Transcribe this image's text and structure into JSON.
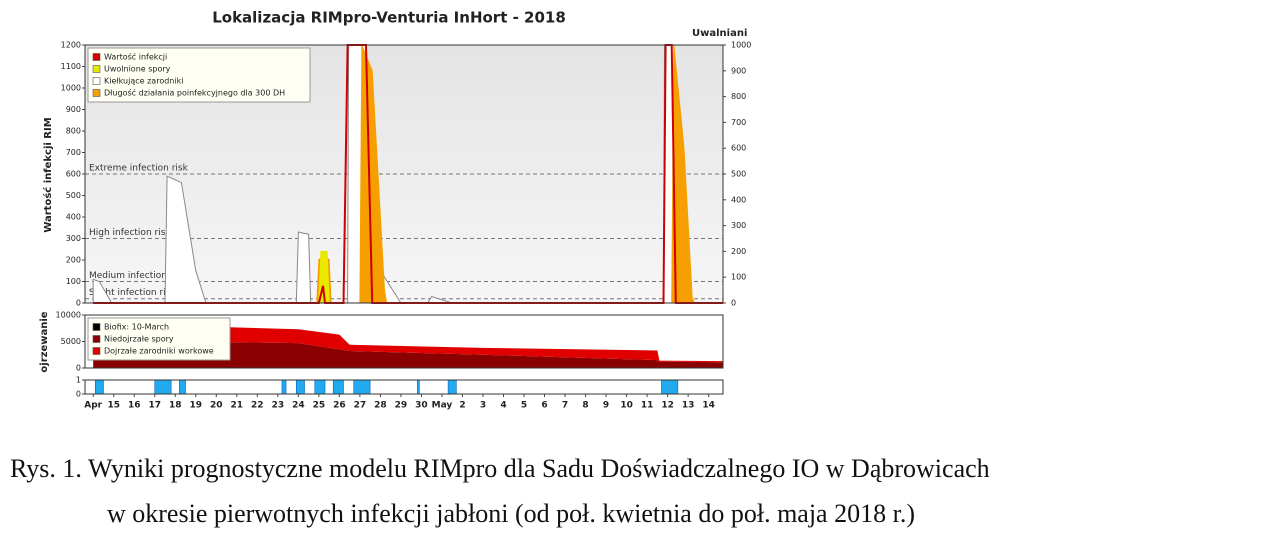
{
  "caption": [
    "Rys. 1. Wyniki prognostyczne modelu RIMpro dla Sadu Doświadczalnego IO w Dąbrowicach",
    "w okresie pierwotnych infekcji jabłoni (od poł. kwietnia do poł. maja 2018 r.)"
  ],
  "chart_data": [
    {
      "type": "line",
      "title": "Lokalizacja RIMpro-Venturia  InHort - 2018",
      "ylabel": "Wartość infekcji RIM",
      "y2label": "Uwalniani",
      "xlim": [
        13.6,
        44.7
      ],
      "ylim": [
        0,
        1200
      ],
      "yticks": [
        0,
        100,
        200,
        300,
        400,
        500,
        600,
        700,
        800,
        900,
        1000,
        1100,
        1200
      ],
      "y2lim": [
        0,
        1000
      ],
      "y2ticks": [
        0,
        100,
        200,
        300,
        400,
        500,
        600,
        700,
        800,
        900,
        1000
      ],
      "thresholds": [
        {
          "label": "Extreme infection risk",
          "value": 600
        },
        {
          "label": "High infection risk",
          "value": 300
        },
        {
          "label": "Medium infection risk",
          "value": 100
        },
        {
          "label": "Slight infection risk",
          "value": 20
        }
      ],
      "series": [
        {
          "name": "Wartość infekcji",
          "color": "#d00000",
          "x": [
            14,
            25.0,
            25.2,
            25.3,
            26.2,
            26.4,
            26.5,
            27.3,
            27.6,
            41.8,
            41.9,
            42.2,
            42.4,
            44.7
          ],
          "values": [
            0,
            0,
            80,
            0,
            0,
            1200,
            1200,
            1200,
            0,
            0,
            1200,
            1200,
            0,
            0
          ]
        },
        {
          "name": "Uwolnione spory",
          "color": "#e8e800",
          "fill": "#e8e800",
          "axis": "y2",
          "x": [
            25.0,
            25.1,
            25.4,
            25.5
          ],
          "values": [
            0,
            200,
            200,
            0
          ]
        },
        {
          "name": "Kiełkujące zarodniki",
          "color": "#888888",
          "fill": "#ffffff",
          "x": [
            14,
            14.3,
            14.9,
            17.5,
            17.6,
            18.3,
            19,
            19.5,
            23.9,
            24.0,
            24.5,
            24.6,
            26.4,
            26.45,
            27.3,
            27.6,
            28,
            29,
            30.3,
            30.5,
            31.5,
            41.8,
            41.85,
            42.3,
            42.7,
            43
          ],
          "values": [
            110,
            100,
            0,
            0,
            590,
            560,
            150,
            0,
            0,
            330,
            320,
            0,
            0,
            1200,
            1200,
            600,
            150,
            0,
            0,
            30,
            0,
            0,
            1200,
            1200,
            200,
            50
          ]
        },
        {
          "name": "Długość działania poinfekcyjnego dla 300 DH",
          "color": "#f5a000",
          "fill": "#f5a000",
          "axis": "y2",
          "x": [
            24.9,
            25.0,
            25.5,
            25.6,
            27.0,
            27.1,
            27.6,
            28.2,
            28.3,
            42.2,
            42.3,
            42.8,
            43.2,
            43.3
          ],
          "values": [
            0,
            170,
            170,
            0,
            0,
            1000,
            900,
            50,
            0,
            0,
            1000,
            600,
            20,
            0
          ]
        }
      ]
    },
    {
      "type": "area",
      "ylabel": "ojrzewanie",
      "xlim": [
        13.6,
        44.7
      ],
      "ylim": [
        0,
        10000
      ],
      "yticks": [
        0,
        5000,
        10000
      ],
      "x": [
        14,
        18,
        24,
        26,
        26.5,
        33,
        41.5,
        41.6,
        44.7
      ],
      "series": [
        {
          "name": "Biofix: 10-March",
          "color": "#000000"
        },
        {
          "name": "Niedojrzałe spory",
          "color": "#8b0000",
          "values": [
            5000,
            5000,
            4700,
            3500,
            3200,
            2500,
            1500,
            1200,
            1100
          ]
        },
        {
          "name": "Dojrzałe zarodniki workowe",
          "color": "#e00000",
          "values": [
            3000,
            3000,
            2600,
            2800,
            1200,
            1300,
            1800,
            200,
            200
          ]
        }
      ]
    },
    {
      "type": "bar",
      "xlim": [
        13.6,
        44.7
      ],
      "ylim": [
        0,
        1
      ],
      "yticks": [
        0,
        1
      ],
      "color": "#22aaee",
      "starts": [
        14.1,
        17.0,
        18.2,
        23.2,
        23.9,
        24.8,
        25.7,
        26.7,
        29.8,
        31.3,
        41.7
      ],
      "ends": [
        14.5,
        17.8,
        18.5,
        23.4,
        24.3,
        25.3,
        26.2,
        27.5,
        29.9,
        31.7,
        42.5
      ],
      "values": [
        1,
        1,
        1,
        1,
        1,
        1,
        1,
        1,
        1,
        1,
        1
      ],
      "xticks": [
        {
          "value": 14,
          "label": "Apr"
        },
        15,
        16,
        17,
        18,
        19,
        20,
        21,
        22,
        23,
        24,
        25,
        26,
        27,
        28,
        29,
        30,
        {
          "value": 31,
          "label": "May"
        },
        {
          "value": 32,
          "label": "2"
        },
        {
          "value": 33,
          "label": "3"
        },
        {
          "value": 34,
          "label": "4"
        },
        {
          "value": 35,
          "label": "5"
        },
        {
          "value": 36,
          "label": "6"
        },
        {
          "value": 37,
          "label": "7"
        },
        {
          "value": 38,
          "label": "8"
        },
        {
          "value": 39,
          "label": "9"
        },
        {
          "value": 40,
          "label": "10"
        },
        {
          "value": 41,
          "label": "11"
        },
        {
          "value": 42,
          "label": "12"
        },
        {
          "value": 43,
          "label": "13"
        },
        {
          "value": 44,
          "label": "14"
        }
      ]
    }
  ]
}
